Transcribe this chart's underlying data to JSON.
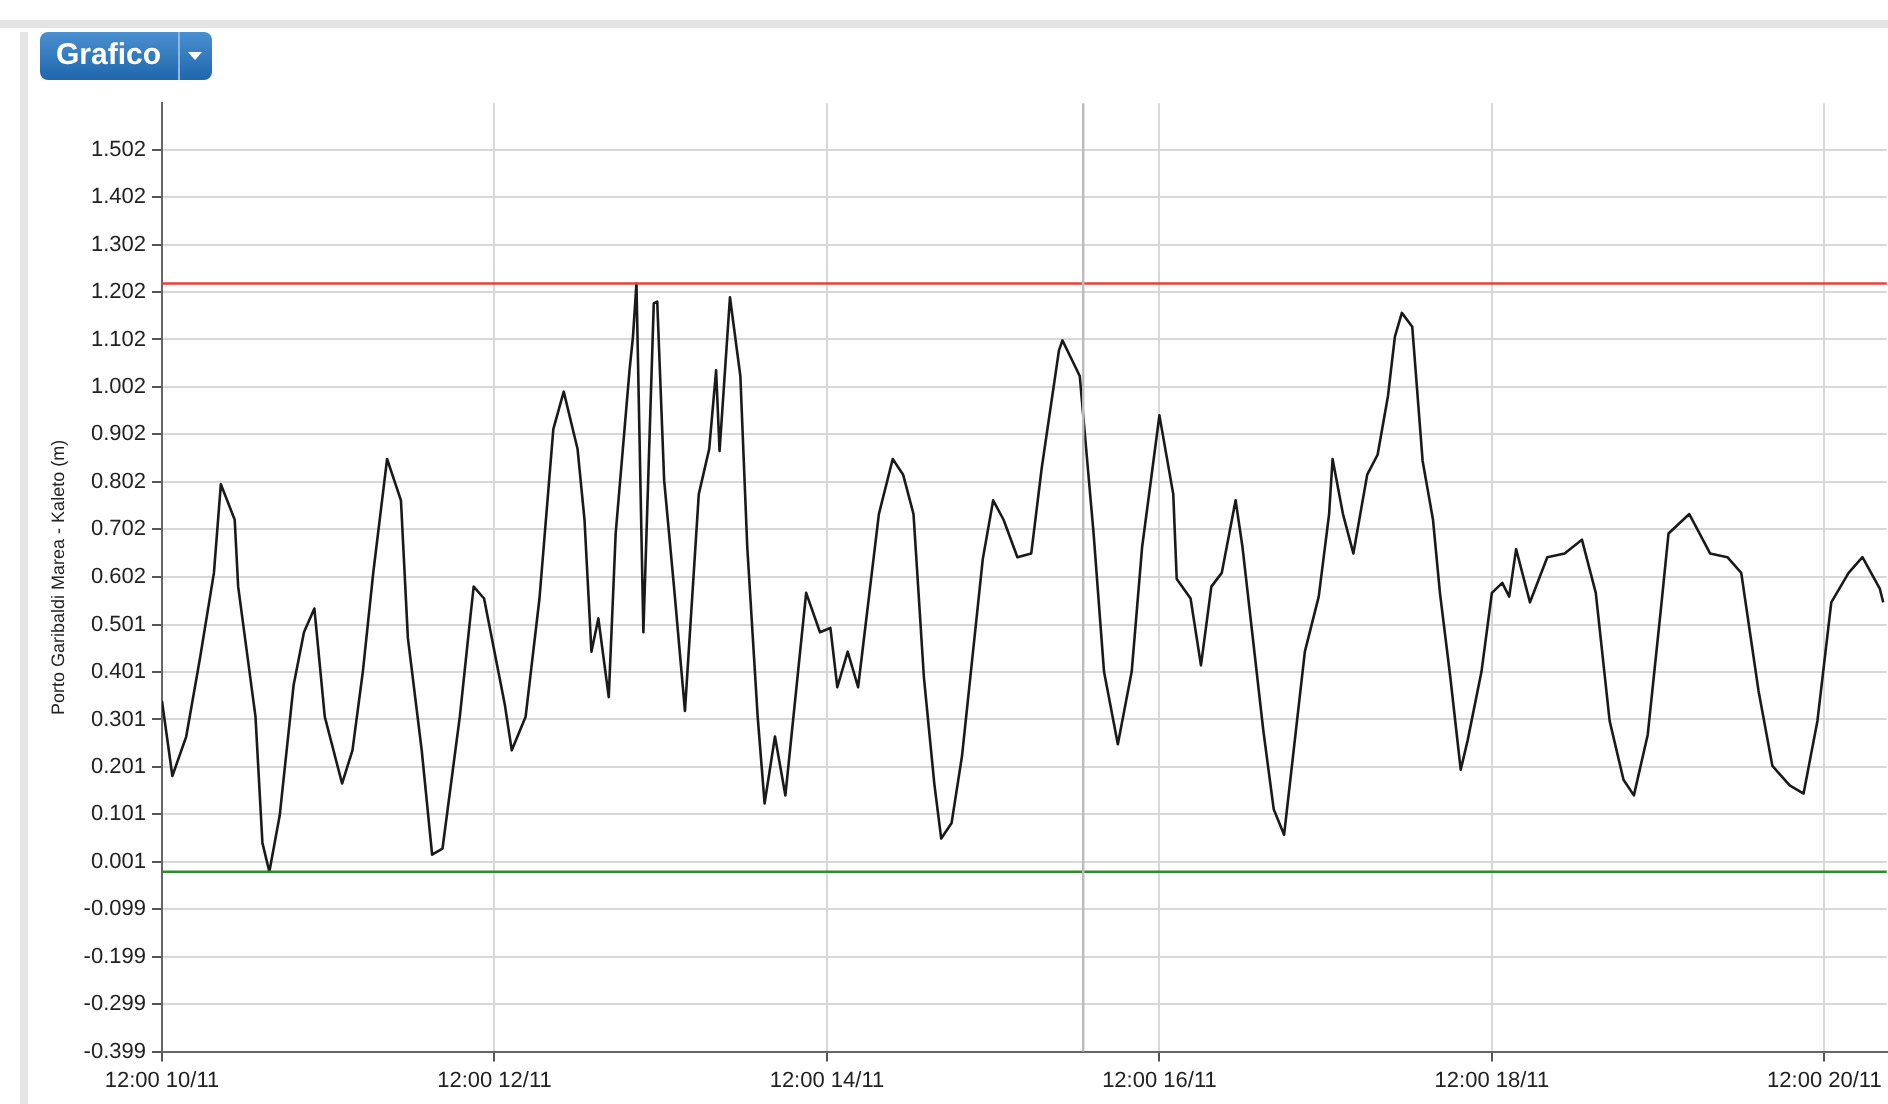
{
  "chart_data": {
    "type": "line",
    "title": "Grafico",
    "ylabel": "Porto Garibaldi Marea - Kaleto (m)",
    "x": [
      "--11-10T12:00",
      "--11-10T13:30",
      "--11-10T15:30",
      "--11-10T17:30",
      "--11-10T19:30",
      "--11-10T20:30",
      "--11-10T22:30",
      "--11-10T23:00",
      "--11-11T01:30",
      "--11-11T02:30",
      "--11-11T03:30",
      "--11-11T05:00",
      "--11-11T07:00",
      "--11-11T08:30",
      "--11-11T10:00",
      "--11-11T11:30",
      "--11-11T14:00",
      "--11-11T15:30",
      "--11-11T17:00",
      "--11-11T18:30",
      "--11-11T20:30",
      "--11-11T22:30",
      "--11-11T23:30",
      "--11-12T01:30",
      "--11-12T03:00",
      "--11-12T04:30",
      "--11-12T07:00",
      "--11-12T08:30",
      "--11-12T09:00",
      "--11-12T10:30",
      "--11-12T13:30",
      "--11-12T14:30",
      "--11-12T16:30",
      "--11-12T18:30",
      "--11-12T20:30",
      "--11-12T22:00",
      "--11-13T00:00",
      "--11-13T01:00",
      "--11-13T02:00",
      "--11-13T03:00",
      "--11-13T04:30",
      "--11-13T05:30",
      "--11-13T07:30",
      "--11-13T08:00",
      "--11-13T08:30",
      "--11-13T09:30",
      "--11-13T11:00",
      "--11-13T11:30",
      "--11-13T12:30",
      "--11-13T14:00",
      "--11-13T15:30",
      "--11-13T17:30",
      "--11-13T19:00",
      "--11-13T20:00",
      "--11-13T20:30",
      "--11-13T22:00",
      "--11-13T23:30",
      "--11-14T00:30",
      "--11-14T02:00",
      "--11-14T03:00",
      "--11-14T04:30",
      "--11-14T06:00",
      "--11-14T09:00",
      "--11-14T11:00",
      "--11-14T12:30",
      "--11-14T13:30",
      "--11-14T15:00",
      "--11-14T16:30",
      "--11-14T19:30",
      "--11-14T21:30",
      "--11-14T23:00",
      "--11-15T00:30",
      "--11-15T02:00",
      "--11-15T03:30",
      "--11-15T04:30",
      "--11-15T06:00",
      "--11-15T07:30",
      "--11-15T10:30",
      "--11-15T12:00",
      "--11-15T13:30",
      "--11-15T15:30",
      "--11-15T17:30",
      "--11-15T19:00",
      "--11-15T21:30",
      "--11-15T22:00",
      "--11-16T00:30",
      "--11-16T02:30",
      "--11-16T04:00",
      "--11-16T06:00",
      "--11-16T08:00",
      "--11-16T09:30",
      "--11-16T11:00",
      "--11-16T12:00",
      "--11-16T14:00",
      "--11-16T14:30",
      "--11-16T16:30",
      "--11-16T18:00",
      "--11-16T19:30",
      "--11-16T21:00",
      "--11-16T23:00",
      "--11-17T00:00",
      "--11-17T03:00",
      "--11-17T04:30",
      "--11-17T06:00",
      "--11-17T09:00",
      "--11-17T11:00",
      "--11-17T12:30",
      "--11-17T13:00",
      "--11-17T14:30",
      "--11-17T16:00",
      "--11-17T18:00",
      "--11-17T19:30",
      "--11-17T21:00",
      "--11-17T22:00",
      "--11-17T23:00",
      "--11-18T00:30",
      "--11-18T02:00",
      "--11-18T03:30",
      "--11-18T04:30",
      "--11-18T06:00",
      "--11-18T07:30",
      "--11-18T08:30",
      "--11-18T10:30",
      "--11-18T12:00",
      "--11-18T13:30",
      "--11-18T14:30",
      "--11-18T15:30",
      "--11-18T17:30",
      "--11-18T20:00",
      "--11-18T22:30",
      "--11-19T01:00",
      "--11-19T03:00",
      "--11-19T05:00",
      "--11-19T07:00",
      "--11-19T08:30",
      "--11-19T10:30",
      "--11-19T12:30",
      "--11-19T13:30",
      "--11-19T16:30",
      "--11-19T19:30",
      "--11-19T22:00",
      "--11-20T00:00",
      "--11-20T02:30",
      "--11-20T04:30",
      "--11-20T07:00",
      "--11-20T09:00",
      "--11-20T11:00",
      "--11-20T13:00",
      "--11-20T15:30",
      "--11-20T17:30",
      "--11-20T20:00",
      "--11-20T20:30"
    ],
    "series": [
      {
        "color": "#1a1a1a",
        "values": [
          0.34,
          0.182,
          0.265,
          0.431,
          0.61,
          0.797,
          0.722,
          0.581,
          0.307,
          0.041,
          -0.02,
          0.099,
          0.373,
          0.485,
          0.535,
          0.307,
          0.166,
          0.236,
          0.402,
          0.61,
          0.85,
          0.763,
          0.473,
          0.236,
          0.016,
          0.029,
          0.307,
          0.514,
          0.581,
          0.556,
          0.332,
          0.236,
          0.307,
          0.556,
          0.913,
          0.992,
          0.871,
          0.722,
          0.444,
          0.514,
          0.348,
          0.693,
          1.037,
          1.108,
          1.22,
          0.485,
          1.178,
          1.182,
          0.805,
          0.568,
          0.319,
          0.776,
          0.871,
          1.037,
          0.867,
          1.191,
          1.025,
          0.664,
          0.307,
          0.124,
          0.265,
          0.141,
          0.568,
          0.485,
          0.494,
          0.369,
          0.444,
          0.369,
          0.734,
          0.85,
          0.817,
          0.734,
          0.39,
          0.166,
          0.05,
          0.083,
          0.224,
          0.639,
          0.763,
          0.722,
          0.643,
          0.651,
          0.83,
          1.079,
          1.1,
          1.025,
          0.693,
          0.402,
          0.249,
          0.402,
          0.664,
          0.83,
          0.942,
          0.776,
          0.597,
          0.556,
          0.415,
          0.581,
          0.61,
          0.763,
          0.664,
          0.278,
          0.112,
          0.058,
          0.444,
          0.56,
          0.734,
          0.85,
          0.734,
          0.651,
          0.817,
          0.859,
          0.983,
          1.108,
          1.158,
          1.129,
          0.846,
          0.722,
          0.568,
          0.39,
          0.195,
          0.257,
          0.402,
          0.568,
          0.589,
          0.56,
          0.66,
          0.548,
          0.643,
          0.651,
          0.68,
          0.568,
          0.298,
          0.174,
          0.141,
          0.269,
          0.548,
          0.693,
          0.734,
          0.651,
          0.643,
          0.61,
          0.361,
          0.203,
          0.162,
          0.145,
          0.298,
          0.548,
          0.61,
          0.643,
          0.577,
          0.548
        ]
      }
    ],
    "xlim": [
      "--11-10T12:00",
      "--11-20T21:00"
    ],
    "xticks": [
      {
        "value": "--11-10T12:00",
        "label": "12:00 10/11"
      },
      {
        "value": "--11-12T12:00",
        "label": "12:00 12/11"
      },
      {
        "value": "--11-14T12:00",
        "label": "12:00 14/11"
      },
      {
        "value": "--11-16T12:00",
        "label": "12:00 16/11"
      },
      {
        "value": "--11-18T12:00",
        "label": "12:00 18/11"
      },
      {
        "value": "--11-20T12:00",
        "label": "12:00 20/11"
      }
    ],
    "ylim": [
      -0.399,
      1.6
    ],
    "yticks": [
      -0.399,
      -0.299,
      -0.199,
      -0.099,
      0.001,
      0.101,
      0.201,
      0.301,
      0.401,
      0.501,
      0.602,
      0.702,
      0.802,
      0.902,
      1.002,
      1.102,
      1.202,
      1.302,
      1.402,
      1.502
    ],
    "ref_lines": [
      {
        "axis": "y",
        "value": 1.22,
        "color": "#e8413a"
      },
      {
        "axis": "y",
        "value": -0.02,
        "color": "#2e8b2e"
      },
      {
        "axis": "x",
        "value": "--11-16T01:00",
        "color": "#bbbbbb"
      }
    ],
    "grid": true,
    "legend": false,
    "marker": "none",
    "line_style": "solid"
  }
}
